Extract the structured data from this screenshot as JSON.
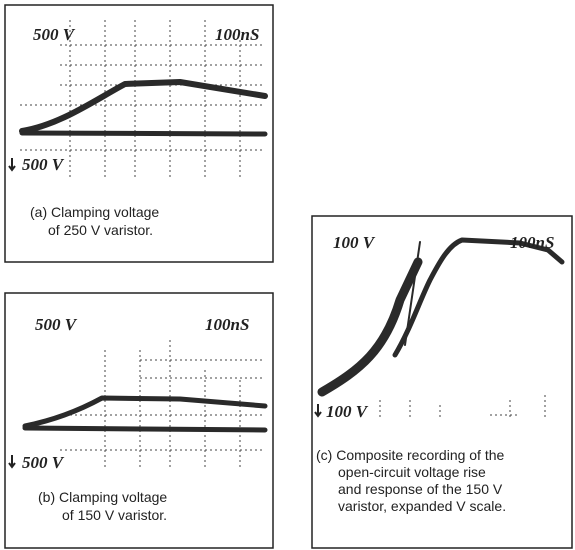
{
  "panels": [
    {
      "top_label": "500 V",
      "time_label": "100nS",
      "bottom_label": "500 V",
      "caption": [
        "(a) Clamping voltage",
        "of 250 V varistor."
      ]
    },
    {
      "top_label": "500 V",
      "time_label": "100nS",
      "bottom_label": "500 V",
      "caption": [
        "(b) Clamping voltage",
        "of 150 V varistor."
      ]
    },
    {
      "top_label": "100 V",
      "time_label": "100nS",
      "bottom_label": "100 V",
      "caption": [
        "(c) Composite recording of the",
        "open-circuit voltage rise",
        "and response of the 150 V",
        "varistor, expanded V scale."
      ]
    }
  ]
}
